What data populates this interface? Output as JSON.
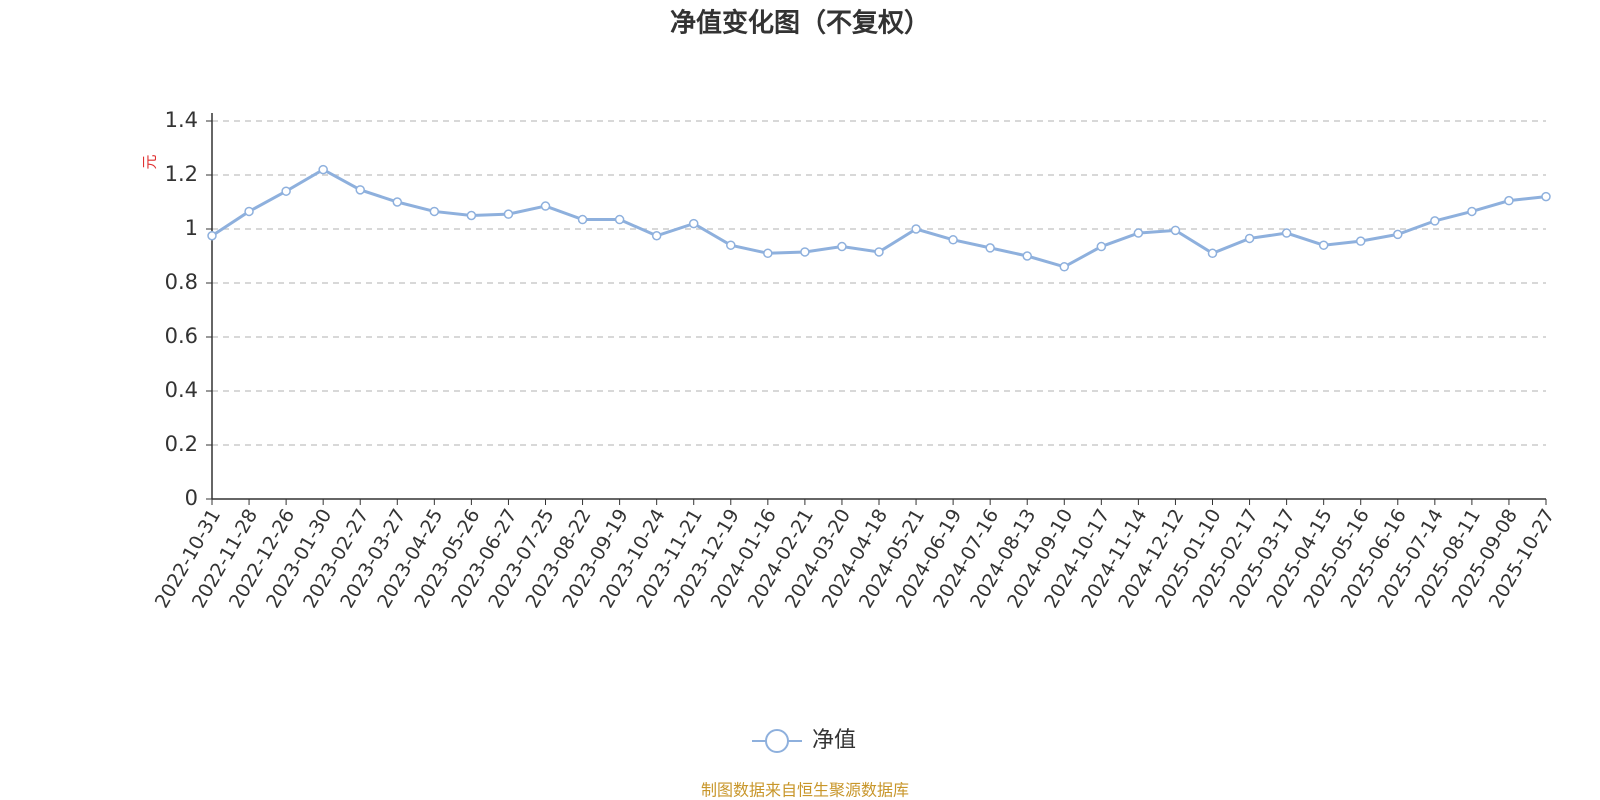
{
  "chart_data": {
    "type": "line",
    "title": "净值变化图（不复权）",
    "y_label": "元",
    "source": "制图数据来自恒生聚源数据库",
    "x": [
      "2022-10-31",
      "2022-11-28",
      "2022-12-26",
      "2023-01-30",
      "2023-02-27",
      "2023-03-27",
      "2023-04-25",
      "2023-05-26",
      "2023-06-27",
      "2023-07-25",
      "2023-08-22",
      "2023-09-19",
      "2023-10-24",
      "2023-11-21",
      "2023-12-19",
      "2024-01-16",
      "2024-02-21",
      "2024-03-20",
      "2024-04-18",
      "2024-05-21",
      "2024-06-19",
      "2024-07-16",
      "2024-08-13",
      "2024-09-10",
      "2024-10-17",
      "2024-11-14",
      "2024-12-12",
      "2025-01-10",
      "2025-02-17",
      "2025-03-17",
      "2025-04-15",
      "2025-05-16",
      "2025-06-16",
      "2025-07-14",
      "2025-08-11",
      "2025-09-08",
      "2025-10-27"
    ],
    "series": [
      {
        "name": "净值",
        "color": "#8eb0dd",
        "values": [
          0.975,
          1.065,
          1.14,
          1.22,
          1.145,
          1.1,
          1.065,
          1.05,
          1.055,
          1.085,
          1.035,
          1.035,
          0.975,
          1.02,
          0.94,
          0.91,
          0.915,
          0.935,
          0.915,
          1.0,
          0.96,
          0.93,
          0.9,
          0.86,
          0.935,
          0.985,
          0.995,
          0.91,
          0.965,
          0.985,
          0.94,
          0.955,
          0.98,
          1.03,
          1.065,
          1.105,
          1.12
        ]
      }
    ],
    "ylim": [
      0,
      1.4
    ],
    "yticks": [
      0,
      0.2,
      0.4,
      0.6,
      0.8,
      1,
      1.2,
      1.4
    ],
    "grid": true
  }
}
